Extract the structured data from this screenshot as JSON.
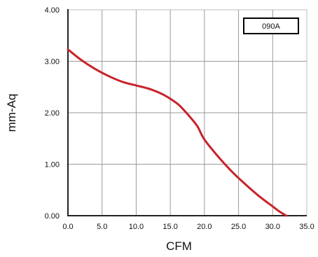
{
  "chart_data": {
    "type": "line",
    "title": "",
    "xlabel": "CFM",
    "ylabel": "mm-Aq",
    "xlim": [
      0,
      35
    ],
    "ylim": [
      0,
      4
    ],
    "x_ticks": [
      0,
      5,
      10,
      15,
      20,
      25,
      30,
      35
    ],
    "y_ticks": [
      0,
      1,
      2,
      3,
      4
    ],
    "x_tick_labels": [
      "0.0",
      "5.0",
      "10.0",
      "15.0",
      "20.0",
      "25.0",
      "30.0",
      "35.0"
    ],
    "y_tick_labels": [
      "0.00",
      "1.00",
      "2.00",
      "3.00",
      "4.00"
    ],
    "grid": true,
    "legend_position": "top-right",
    "colors": {
      "series": "#c8232a",
      "grid": "#9a9a9a",
      "axis": "#222222",
      "frame": "#bdbdbd"
    },
    "series": [
      {
        "name": "090A",
        "x": [
          0,
          2,
          4,
          6,
          8,
          10,
          12,
          14,
          16,
          17,
          18,
          19,
          20,
          22,
          24,
          26,
          28,
          30,
          31,
          32
        ],
        "y": [
          3.23,
          3.02,
          2.85,
          2.71,
          2.6,
          2.53,
          2.46,
          2.35,
          2.18,
          2.05,
          1.9,
          1.73,
          1.48,
          1.15,
          0.86,
          0.61,
          0.38,
          0.18,
          0.08,
          0.0
        ]
      }
    ]
  }
}
